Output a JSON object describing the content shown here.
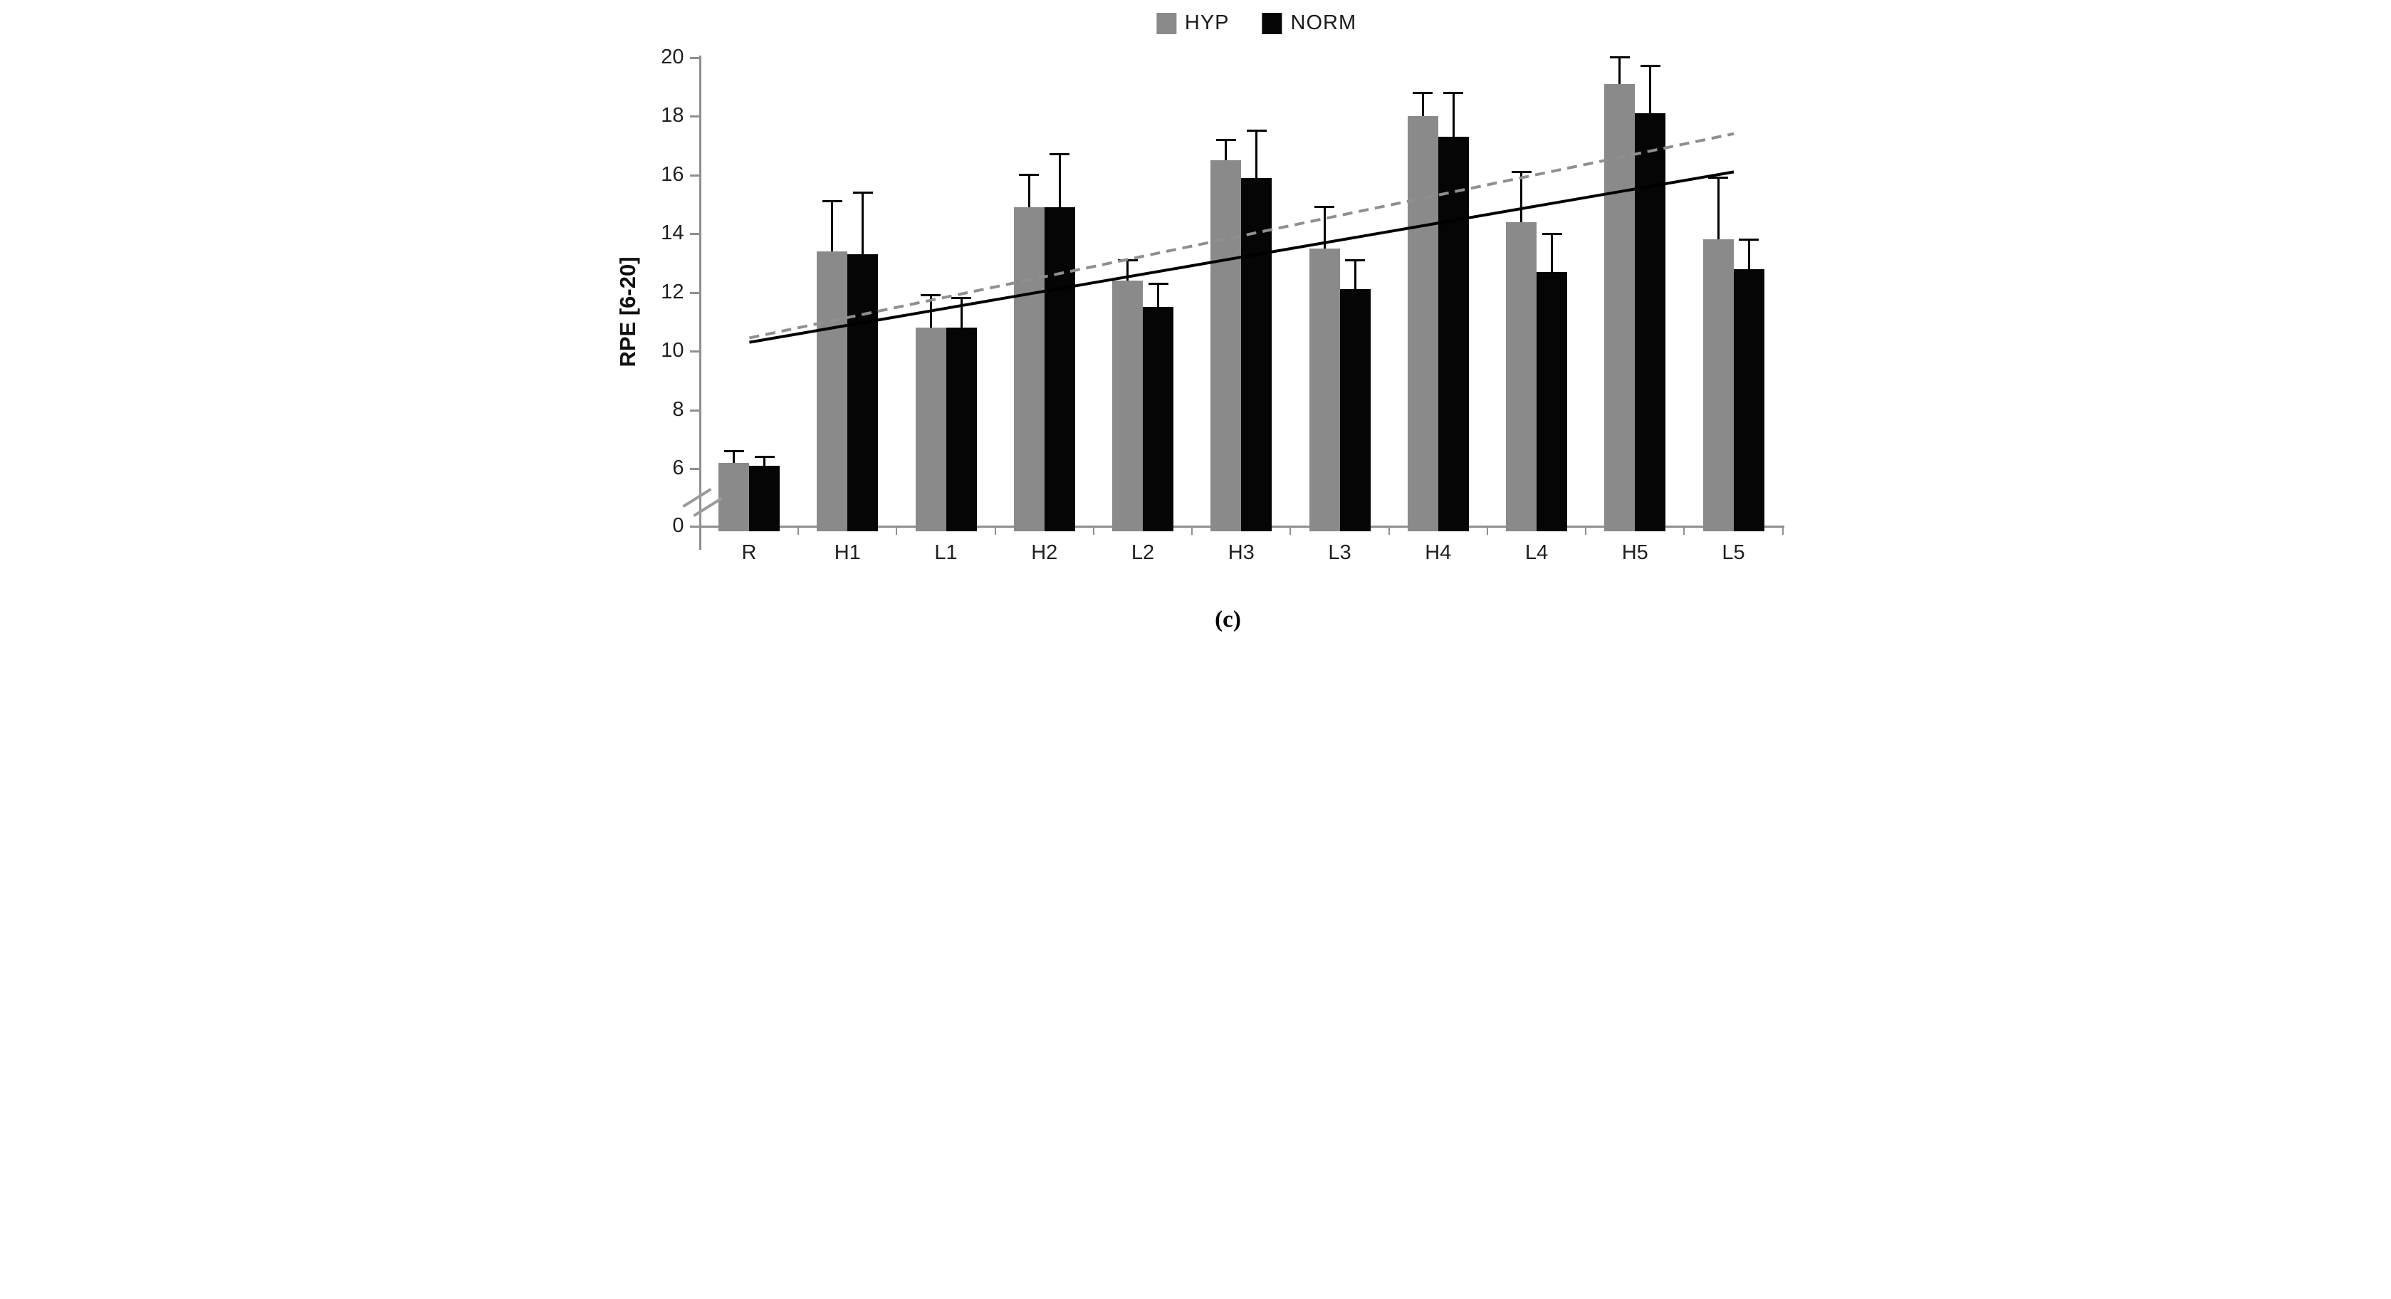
{
  "legend": {
    "items": [
      {
        "label": "HYP",
        "color": "#8a8a8a"
      },
      {
        "label": "NORM",
        "color": "#050505"
      }
    ]
  },
  "y_axis": {
    "title": "RPE [6-20]"
  },
  "caption": "(c)",
  "colors": {
    "axis": "#8f8f8f",
    "hyp_bar": "#8a8a8a",
    "norm_bar": "#050505",
    "trend_dashed": "#8f8f8f",
    "trend_solid": "#000000",
    "text": "#1f1f1f"
  },
  "chart_data": {
    "type": "bar",
    "title": "",
    "xlabel": "",
    "ylabel": "RPE [6-20]",
    "categories": [
      "R",
      "H1",
      "L1",
      "H2",
      "L2",
      "H3",
      "L3",
      "H4",
      "L4",
      "H5",
      "L5"
    ],
    "series": [
      {
        "name": "HYP",
        "color": "#8a8a8a",
        "values": [
          6.2,
          13.4,
          10.8,
          14.9,
          12.4,
          16.5,
          13.5,
          18.0,
          14.4,
          19.1,
          13.8
        ],
        "errors_up": [
          0.4,
          1.7,
          1.1,
          1.1,
          0.7,
          0.7,
          1.4,
          0.8,
          1.7,
          0.9,
          2.1
        ]
      },
      {
        "name": "NORM",
        "color": "#050505",
        "values": [
          6.1,
          13.3,
          10.8,
          14.9,
          11.5,
          15.9,
          12.1,
          17.3,
          12.7,
          18.1,
          12.8
        ],
        "errors_up": [
          0.3,
          2.1,
          1.0,
          1.8,
          0.8,
          1.6,
          1.0,
          1.5,
          1.3,
          1.6,
          1.0
        ]
      }
    ],
    "trendlines": [
      {
        "series": "HYP",
        "style": "dashed",
        "color": "#8f8f8f",
        "start_value": 10.45,
        "end_value": 17.4
      },
      {
        "series": "NORM",
        "style": "solid",
        "color": "#000000",
        "start_value": 10.3,
        "end_value": 16.1
      }
    ],
    "yticks": [
      20,
      18,
      16,
      14,
      12,
      10,
      8,
      6,
      0
    ],
    "ylim": [
      0,
      20
    ],
    "axis_break": {
      "between": [
        0,
        6
      ]
    },
    "error_bars": "upper-only",
    "grid": false,
    "legend_position": "top-center"
  }
}
